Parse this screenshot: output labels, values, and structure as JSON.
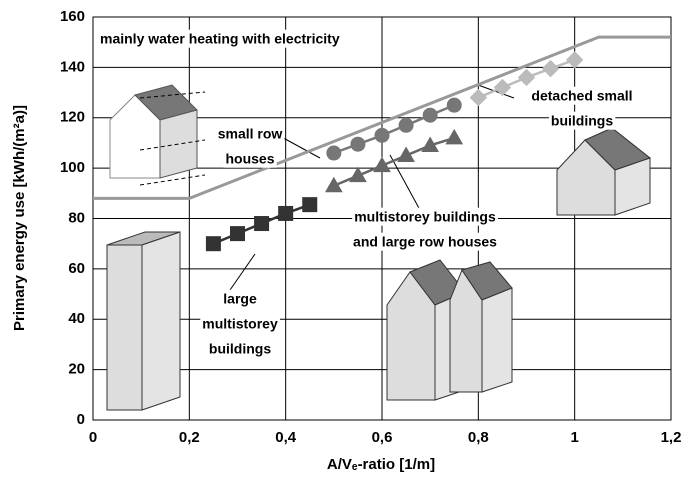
{
  "chart_data": {
    "type": "line",
    "x_label": "A/Vₑ-ratio [1/m]",
    "y_label": "Primary energy use [kWh/(m²a)]",
    "xlim": [
      0,
      1.2
    ],
    "ylim": [
      0,
      160
    ],
    "xticks": [
      0,
      {
        "value": 0.2,
        "label": "0,2"
      },
      {
        "value": 0.4,
        "label": "0,4"
      },
      {
        "value": 0.6,
        "label": "0,6"
      },
      {
        "value": 0.8,
        "label": "0,8"
      },
      1,
      {
        "value": 1.2,
        "label": "1,2"
      }
    ],
    "yticks": [
      0,
      20,
      40,
      60,
      80,
      100,
      120,
      140,
      160
    ],
    "grid": true,
    "series": [
      {
        "color": "#999999",
        "marker": "none",
        "x": [
          0,
          0.2,
          1.05,
          1.2
        ],
        "values": [
          88,
          88,
          152,
          152
        ]
      },
      {
        "color": "#333333",
        "marker": "square",
        "x": [
          0.25,
          0.3,
          0.35,
          0.4,
          0.45
        ],
        "values": [
          70,
          74,
          78,
          82,
          85.5
        ]
      },
      {
        "color": "#666666",
        "marker": "triangle",
        "x": [
          0.5,
          0.55,
          0.6,
          0.65,
          0.7,
          0.75
        ],
        "values": [
          93,
          97,
          101,
          105,
          109,
          112
        ]
      },
      {
        "color": "#777777",
        "marker": "circle",
        "x": [
          0.5,
          0.55,
          0.6,
          0.65,
          0.7,
          0.75
        ],
        "values": [
          106,
          109.5,
          113,
          117,
          121,
          125
        ]
      },
      {
        "color": "#bbbbbb",
        "marker": "diamond",
        "x": [
          0.8,
          0.85,
          0.9,
          0.95,
          1.0
        ],
        "values": [
          128,
          132,
          136,
          139.5,
          143
        ]
      }
    ],
    "annotations": [
      [
        "mainly water heating with electricity"
      ],
      [
        "small row",
        "houses"
      ],
      [
        "detached small",
        "buildings"
      ],
      [
        "multistorey buildings",
        "and large row houses"
      ],
      [
        "large",
        "multistorey",
        "buildings"
      ]
    ]
  }
}
